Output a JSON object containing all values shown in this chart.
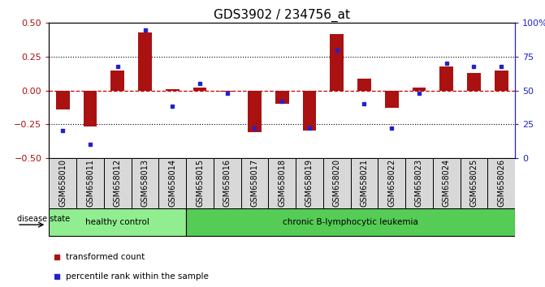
{
  "title": "GDS3902 / 234756_at",
  "samples": [
    "GSM658010",
    "GSM658011",
    "GSM658012",
    "GSM658013",
    "GSM658014",
    "GSM658015",
    "GSM658016",
    "GSM658017",
    "GSM658018",
    "GSM658019",
    "GSM658020",
    "GSM658021",
    "GSM658022",
    "GSM658023",
    "GSM658024",
    "GSM658025",
    "GSM658026"
  ],
  "red_bars": [
    -0.14,
    -0.27,
    0.15,
    0.43,
    0.01,
    0.02,
    -0.01,
    -0.31,
    -0.1,
    -0.3,
    0.42,
    0.09,
    -0.13,
    0.02,
    0.18,
    0.13,
    0.15
  ],
  "blue_dots_pct": [
    20,
    10,
    68,
    95,
    38,
    55,
    48,
    22,
    42,
    22,
    80,
    40,
    22,
    48,
    70,
    68,
    68
  ],
  "healthy_count": 5,
  "ylim": [
    -0.5,
    0.5
  ],
  "y2lim": [
    0,
    100
  ],
  "yticks": [
    -0.5,
    -0.25,
    0.0,
    0.25,
    0.5
  ],
  "y2ticks": [
    0,
    25,
    50,
    75,
    100
  ],
  "bar_color": "#aa1111",
  "dot_color": "#2222cc",
  "healthy_color": "#90ee90",
  "leukemia_color": "#55cc55",
  "group_label_healthy": "healthy control",
  "group_label_leukemia": "chronic B-lymphocytic leukemia",
  "disease_state_label": "disease state",
  "legend_bar": "transformed count",
  "legend_dot": "percentile rank within the sample",
  "background_color": "#ffffff",
  "plot_bg": "#ffffff",
  "hline_color": "#cc0000",
  "title_fontsize": 11,
  "tick_fontsize": 7,
  "label_fontsize": 8,
  "cell_bg": "#d8d8d8"
}
